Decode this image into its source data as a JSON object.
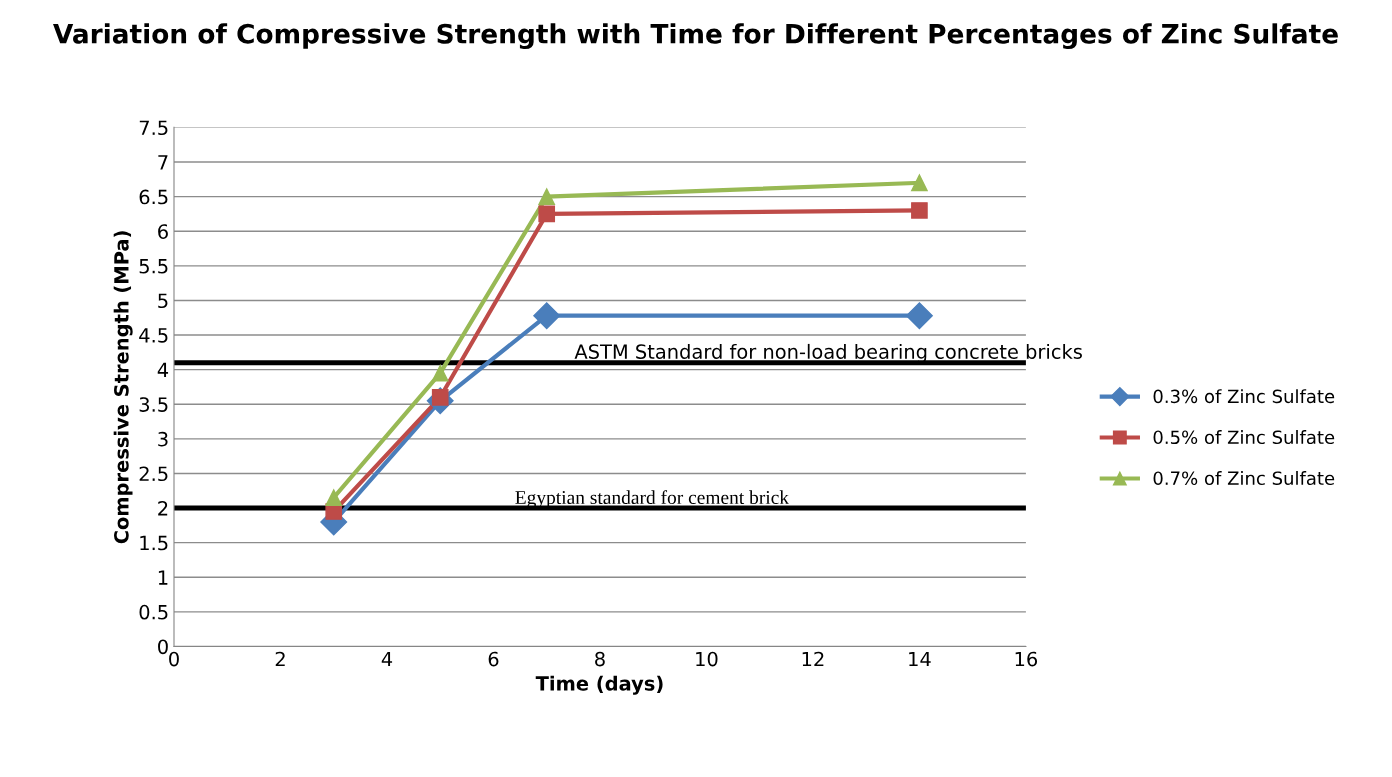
{
  "chart_data": {
    "type": "line",
    "title": "Variation of Compressive Strength with Time for Different Percentages of Zinc Sulfate",
    "xlabel": "Time (days)",
    "ylabel": "Compressive Strength (MPa)",
    "x": [
      3,
      5,
      7,
      14
    ],
    "series": [
      {
        "name": "0.3% of Zinc Sulfate",
        "color": "#4a7ebb",
        "marker": "diamond",
        "values": [
          1.8,
          3.55,
          4.78,
          4.78
        ]
      },
      {
        "name": "0.5% of Zinc Sulfate",
        "color": "#be4b48",
        "marker": "square",
        "values": [
          1.95,
          3.6,
          6.25,
          6.3
        ]
      },
      {
        "name": "0.7% of Zinc Sulfate",
        "color": "#98b954",
        "marker": "triangle",
        "values": [
          2.15,
          3.95,
          6.5,
          6.7
        ]
      }
    ],
    "xlim": [
      0,
      16
    ],
    "xticks": [
      0,
      2,
      4,
      6,
      8,
      10,
      12,
      14,
      16
    ],
    "ylim": [
      0,
      7.5
    ],
    "yticks": [
      0,
      0.5,
      1,
      1.5,
      2,
      2.5,
      3,
      3.5,
      4,
      4.5,
      5,
      5.5,
      6,
      6.5,
      7,
      7.5
    ],
    "ref_lines": [
      {
        "axis": "y",
        "value": 4.1,
        "label": "ASTM Standard for non-load bearing concrete bricks",
        "color": "#000000"
      },
      {
        "axis": "y",
        "value": 2.0,
        "label": "Egyptian standard for cement brick",
        "color": "#000000"
      }
    ],
    "grid": "y",
    "legend": "right",
    "line_style": "solid"
  }
}
